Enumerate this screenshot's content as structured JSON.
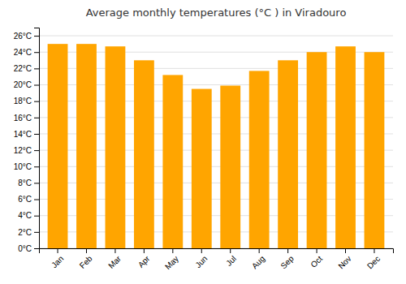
{
  "chart_data": {
    "type": "bar",
    "title": "Average monthly temperatures (°C ) in Viradouro",
    "categories": [
      "Jan",
      "Feb",
      "Mar",
      "Apr",
      "May",
      "Jun",
      "Jul",
      "Aug",
      "Sep",
      "Oct",
      "Nov",
      "Dec"
    ],
    "values": [
      25.0,
      25.0,
      24.7,
      23.0,
      21.2,
      19.5,
      19.9,
      21.7,
      23.0,
      24.0,
      24.7,
      24.0
    ],
    "color": "#FFA500",
    "ylim": [
      0,
      27
    ],
    "yticks": [
      {
        "value": 0,
        "label": "0°C"
      },
      {
        "value": 2,
        "label": "2°C"
      },
      {
        "value": 4,
        "label": "4°C"
      },
      {
        "value": 6,
        "label": "6°C"
      },
      {
        "value": 8,
        "label": "8°C"
      },
      {
        "value": 10,
        "label": "10°C"
      },
      {
        "value": 12,
        "label": "12°C"
      },
      {
        "value": 14,
        "label": "14°C"
      },
      {
        "value": 16,
        "label": "16°C"
      },
      {
        "value": 18,
        "label": "18°C"
      },
      {
        "value": 20,
        "label": "20°C"
      },
      {
        "value": 22,
        "label": "22°C"
      },
      {
        "value": 24,
        "label": "24°C"
      },
      {
        "value": 26,
        "label": "26°C"
      }
    ],
    "grid": true
  }
}
